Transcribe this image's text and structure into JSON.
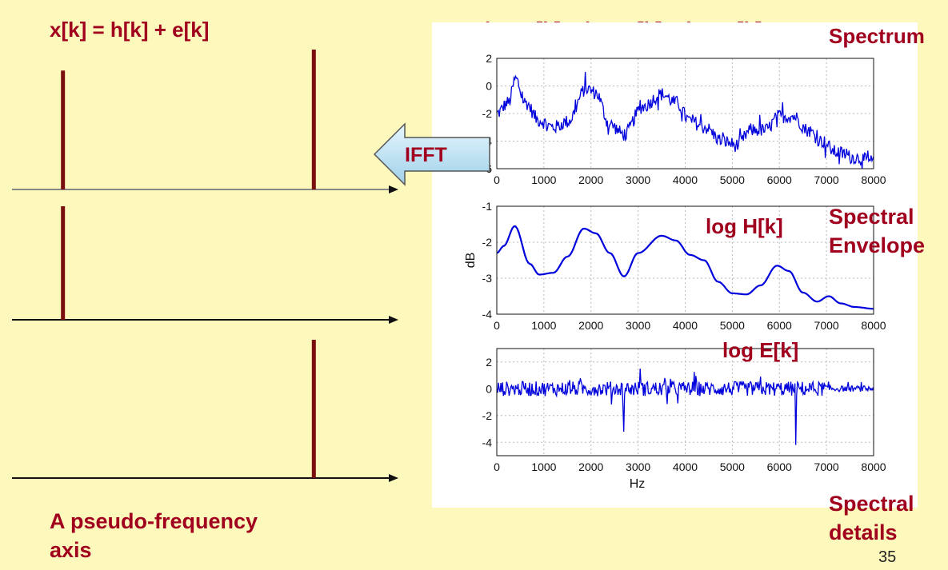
{
  "left_equation": "x[k] = h[k] + e[k]",
  "right_equation": "log X[k] = log H[k] + log E[k]",
  "labels": {
    "spectrum": "Spectrum",
    "envelope": "Spectral Envelope",
    "details": "Spectral details",
    "log_h": "log H[k]",
    "log_e": "log E[k]",
    "pseudo_axis": "A pseudo-frequency axis",
    "ifft": "IFFT",
    "page_number": "35"
  },
  "colors": {
    "background": "#fdf9bc",
    "accent": "#a0001e",
    "stem": "#7a0f0f",
    "series": "#0000dd"
  },
  "stem_plots": [
    {
      "name": "x[k]",
      "stems": [
        {
          "pos": 0.13,
          "height": 0.85
        },
        {
          "pos": 0.77,
          "height": 1.0
        }
      ]
    },
    {
      "name": "h[k]",
      "stems": [
        {
          "pos": 0.13,
          "height": 1.0
        }
      ]
    },
    {
      "name": "e[k]",
      "stems": [
        {
          "pos": 0.77,
          "height": 1.0
        }
      ]
    }
  ],
  "chart_data": [
    {
      "type": "line",
      "xlim": [
        0,
        8000
      ],
      "ylim": [
        -6,
        2
      ],
      "x_ticks": [
        "0",
        "1000",
        "2000",
        "3000",
        "4000",
        "5000",
        "6000",
        "7000",
        "8000"
      ],
      "y_ticks": [
        "2",
        "0",
        "-2",
        "-4",
        "-6"
      ],
      "grid": true,
      "x": [
        0,
        250,
        400,
        600,
        900,
        1200,
        1500,
        1900,
        2100,
        2400,
        2700,
        3100,
        3500,
        3800,
        4100,
        4400,
        4800,
        5100,
        5400,
        5700,
        6000,
        6300,
        6600,
        6900,
        7200,
        7600,
        8000
      ],
      "y": [
        -2,
        -1.2,
        0.5,
        -1.2,
        -2.5,
        -3,
        -2.6,
        -0.2,
        -0.5,
        -2.8,
        -3.5,
        -1.5,
        -0.6,
        -1.2,
        -2.5,
        -3,
        -4,
        -4.3,
        -3.2,
        -3.2,
        -2.2,
        -2.2,
        -3.2,
        -4,
        -4.8,
        -5.2,
        -5.5
      ],
      "noise_amplitude": 0.5
    },
    {
      "type": "line",
      "xlim": [
        0,
        8000
      ],
      "ylim": [
        -4,
        -1
      ],
      "ylabel": "dB",
      "x_ticks": [
        "0",
        "1000",
        "2000",
        "3000",
        "4000",
        "5000",
        "6000",
        "7000",
        "8000"
      ],
      "y_ticks": [
        "-1",
        "-2",
        "-3",
        "-4"
      ],
      "grid": true,
      "x": [
        0,
        150,
        380,
        700,
        900,
        1200,
        1500,
        1850,
        2100,
        2400,
        2700,
        3000,
        3500,
        3800,
        4100,
        4400,
        4700,
        5000,
        5300,
        5600,
        5950,
        6200,
        6500,
        6800,
        7050,
        7300,
        7600,
        8000
      ],
      "y": [
        -2.3,
        -2.1,
        -1.55,
        -2.6,
        -2.9,
        -2.85,
        -2.4,
        -1.62,
        -1.75,
        -2.3,
        -2.95,
        -2.3,
        -1.82,
        -1.95,
        -2.35,
        -2.5,
        -3.1,
        -3.42,
        -3.45,
        -3.2,
        -2.65,
        -2.8,
        -3.4,
        -3.65,
        -3.5,
        -3.7,
        -3.8,
        -3.85
      ],
      "noise_amplitude": 0
    },
    {
      "type": "line",
      "xlabel": "Hz",
      "xlim": [
        0,
        8000
      ],
      "ylim": [
        -5,
        3
      ],
      "x_ticks": [
        "0",
        "1000",
        "2000",
        "3000",
        "4000",
        "5000",
        "6000",
        "7000",
        "8000"
      ],
      "y_ticks": [
        "2",
        "0",
        "-2",
        "-4"
      ],
      "grid": true,
      "x": [
        0,
        500,
        1000,
        1500,
        2000,
        2500,
        2700,
        2900,
        3050,
        3500,
        4000,
        4500,
        5000,
        5500,
        6000,
        6300,
        6350,
        6500,
        7000,
        8000
      ],
      "y": [
        0,
        0,
        0,
        0,
        0,
        0,
        -3.2,
        0,
        1.5,
        0,
        0,
        0,
        0,
        0,
        0,
        0,
        -4.2,
        0,
        0,
        0
      ],
      "noise_amplitude": 0.55
    }
  ]
}
